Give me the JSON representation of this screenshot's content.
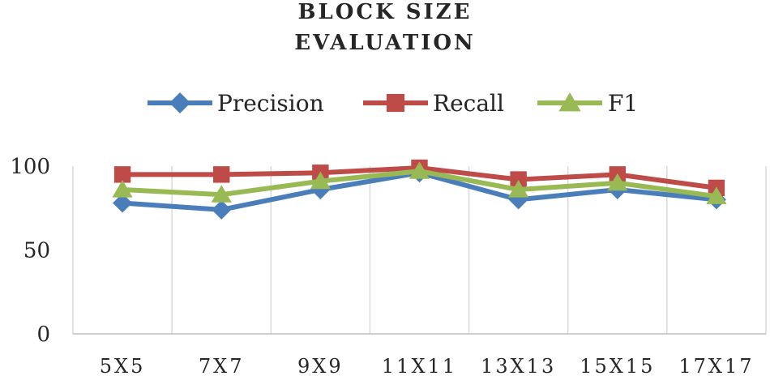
{
  "chart_data": {
    "type": "line",
    "title_lines": [
      "BLOCK SIZE",
      "EVALUATION"
    ],
    "categories": [
      "5X5",
      "7X7",
      "9X9",
      "11X11",
      "13X13",
      "15X15",
      "17X17"
    ],
    "series": [
      {
        "name": "Precision",
        "marker": "diamond",
        "color": "#4a7ebb",
        "values": [
          78,
          74,
          86,
          96,
          80,
          86,
          80
        ]
      },
      {
        "name": "Recall",
        "marker": "square",
        "color": "#be4b48",
        "values": [
          95,
          95,
          96,
          99,
          92,
          95,
          87
        ]
      },
      {
        "name": "F1",
        "marker": "triangle",
        "color": "#98b954",
        "values": [
          86,
          83,
          91,
          97,
          86,
          90,
          82
        ]
      }
    ],
    "yticks": [
      0,
      50,
      100
    ],
    "ylim": [
      0,
      100
    ],
    "grid": "vertical",
    "legend_position": "top"
  }
}
